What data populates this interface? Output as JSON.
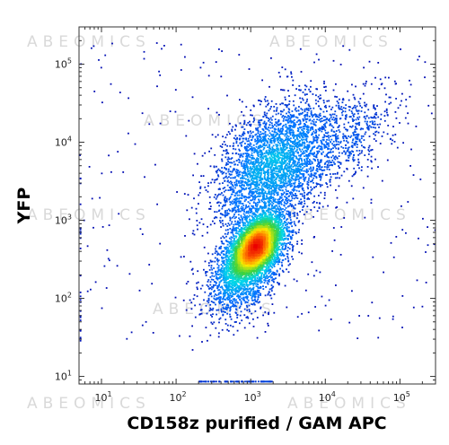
{
  "chart_data": {
    "type": "scatter",
    "subtype": "flow-cytometry-density-dot-plot",
    "xlabel": "CD158z purified  / GAM APC",
    "ylabel": "YFP",
    "x_scale": "log",
    "y_scale": "log",
    "xlim": [
      5,
      300000
    ],
    "ylim": [
      8,
      300000
    ],
    "x_ticks": [
      {
        "base": "10",
        "exp": "1",
        "value": 10
      },
      {
        "base": "10",
        "exp": "2",
        "value": 100
      },
      {
        "base": "10",
        "exp": "3",
        "value": 1000
      },
      {
        "base": "10",
        "exp": "4",
        "value": 10000
      },
      {
        "base": "10",
        "exp": "5",
        "value": 100000
      }
    ],
    "y_ticks": [
      {
        "base": "10",
        "exp": "1",
        "value": 10
      },
      {
        "base": "10",
        "exp": "2",
        "value": 100
      },
      {
        "base": "10",
        "exp": "3",
        "value": 1000
      },
      {
        "base": "10",
        "exp": "4",
        "value": 10000
      },
      {
        "base": "10",
        "exp": "5",
        "value": 100000
      }
    ],
    "grid": false,
    "color_scale": "density (blue → cyan → green → yellow → red)",
    "populations": [
      {
        "center_x": 1200,
        "center_y": 480,
        "events": 4200,
        "spread_log": 0.2
      },
      {
        "center_x": 2000,
        "center_y": 5000,
        "events": 3300,
        "spread_log": 0.42
      },
      {
        "center_x": 800,
        "center_y": 200,
        "events": 1600,
        "spread_log": 0.28
      },
      {
        "center_x": 20000,
        "center_y": 12000,
        "events": 500,
        "spread_log": 0.35
      }
    ],
    "watermark": "ABEOMICS"
  }
}
